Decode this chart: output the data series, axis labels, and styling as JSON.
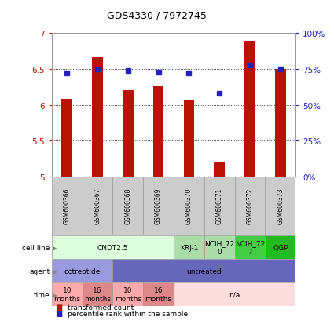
{
  "title": "GDS4330 / 7972745",
  "samples": [
    "GSM600366",
    "GSM600367",
    "GSM600368",
    "GSM600369",
    "GSM600370",
    "GSM600371",
    "GSM600372",
    "GSM600373"
  ],
  "transformed_count": [
    6.08,
    6.67,
    6.2,
    6.27,
    6.06,
    5.2,
    6.9,
    6.5
  ],
  "percentile_rank": [
    72,
    75,
    74,
    73,
    72,
    58,
    78,
    75
  ],
  "bar_color": "#bb1100",
  "dot_color": "#2222bb",
  "ylim_left": [
    5.0,
    7.0
  ],
  "ylim_right": [
    0,
    100
  ],
  "yticks_left": [
    5.0,
    5.5,
    6.0,
    6.5,
    7.0
  ],
  "yticks_right": [
    0,
    25,
    50,
    75,
    100
  ],
  "yticklabels_right": [
    "0%",
    "25%",
    "50%",
    "75%",
    "100%"
  ],
  "cell_line_groups": [
    {
      "label": "CNDT2.5",
      "start": 0,
      "end": 4,
      "color": "#ddffdd"
    },
    {
      "label": "KRJ-1",
      "start": 4,
      "end": 5,
      "color": "#aaddaa"
    },
    {
      "label": "NCIH_72\n0",
      "start": 5,
      "end": 6,
      "color": "#aaddaa"
    },
    {
      "label": "NCIH_72\n7",
      "start": 6,
      "end": 7,
      "color": "#44cc44"
    },
    {
      "label": "QGP",
      "start": 7,
      "end": 8,
      "color": "#22bb22"
    }
  ],
  "agent_groups": [
    {
      "label": "octreotide",
      "start": 0,
      "end": 2,
      "color": "#9999dd"
    },
    {
      "label": "untreated",
      "start": 2,
      "end": 8,
      "color": "#6666bb"
    }
  ],
  "time_groups": [
    {
      "label": "10\nmonths",
      "start": 0,
      "end": 1,
      "color": "#ffaaaa"
    },
    {
      "label": "16\nmonths",
      "start": 1,
      "end": 2,
      "color": "#dd8888"
    },
    {
      "label": "10\nmonths",
      "start": 2,
      "end": 3,
      "color": "#ffaaaa"
    },
    {
      "label": "16\nmonths",
      "start": 3,
      "end": 4,
      "color": "#dd8888"
    },
    {
      "label": "n/a",
      "start": 4,
      "end": 8,
      "color": "#ffdddd"
    }
  ],
  "row_labels": [
    "cell line",
    "agent",
    "time"
  ],
  "legend_items": [
    {
      "color": "#bb1100",
      "label": "transformed count"
    },
    {
      "color": "#2222bb",
      "label": "percentile rank within the sample"
    }
  ],
  "background_color": "#ffffff",
  "sample_box_color": "#cccccc",
  "border_color": "#999999"
}
